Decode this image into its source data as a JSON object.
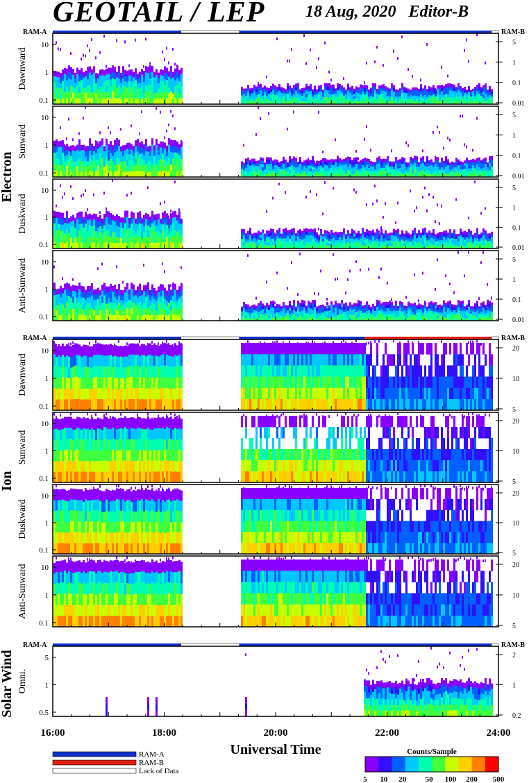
{
  "chart_data": {
    "type": "heatmap",
    "title": "GEOTAIL / LEP",
    "date": "18 Aug, 2020",
    "editor": "Editor-B",
    "xlabel": "Universal Time",
    "x_ticks": [
      "16:00",
      "18:00",
      "20:00",
      "22:00",
      "24:00"
    ],
    "x_range_hours": [
      16,
      24
    ],
    "data_gaps_hours": [
      [
        18.3,
        19.35
      ]
    ],
    "ram_labels": {
      "left": "RAM-A",
      "right": "RAM-B"
    },
    "groups": [
      {
        "name": "Electron",
        "panels": [
          {
            "label": "Dawnward",
            "left_ticks": [
              "10",
              "1",
              "0.1"
            ],
            "right_ticks": [
              "5",
              "1",
              "0.1",
              "0.01"
            ]
          },
          {
            "label": "Sunward",
            "left_ticks": [
              "10",
              "1",
              "0.1"
            ],
            "right_ticks": [
              "5",
              "1",
              "0.1",
              "0.01"
            ]
          },
          {
            "label": "Duskward",
            "left_ticks": [
              "10",
              "1",
              "0.1"
            ],
            "right_ticks": [
              "5",
              "1",
              "0.1",
              "0.01"
            ]
          },
          {
            "label": "Anti-Sunward",
            "left_ticks": [
              "10",
              "1",
              "0.1"
            ],
            "right_ticks": [
              "5",
              "1",
              "0.1",
              "0.01"
            ]
          }
        ]
      },
      {
        "name": "Ion",
        "panels": [
          {
            "label": "Dawnward",
            "left_ticks": [
              "10",
              "1",
              "0.1"
            ],
            "right_ticks": [
              "20",
              "10",
              "5"
            ]
          },
          {
            "label": "Sunward",
            "left_ticks": [
              "10",
              "1",
              "0.1"
            ],
            "right_ticks": [
              "20",
              "10",
              "5"
            ]
          },
          {
            "label": "Duskward",
            "left_ticks": [
              "10",
              "1",
              "0.1"
            ],
            "right_ticks": [
              "20",
              "10",
              "5"
            ]
          },
          {
            "label": "Anti-Sunward",
            "left_ticks": [
              "10",
              "1",
              "0.1"
            ],
            "right_ticks": [
              "20",
              "10",
              "5"
            ]
          }
        ]
      },
      {
        "name": "Solar Wind",
        "panels": [
          {
            "label": "Omni.",
            "left_ticks": [
              "5",
              "1",
              "0.5"
            ],
            "right_ticks": [
              "2",
              "1",
              "0.2"
            ]
          }
        ]
      }
    ],
    "legend": {
      "items": [
        {
          "label": "RAM-A",
          "color": "#1030c8"
        },
        {
          "label": "RAM-B",
          "color": "#e02010"
        },
        {
          "label": "Lack of Data",
          "color": "#ffffff"
        }
      ]
    },
    "colorbar": {
      "title": "Counts/Sample",
      "ticks": [
        "5",
        "10",
        "20",
        "50",
        "100",
        "200",
        "500"
      ],
      "colors": [
        "#8a00ff",
        "#1a1aff",
        "#00c8ff",
        "#00ff80",
        "#c8ff00",
        "#ffb000",
        "#ff0000"
      ]
    }
  }
}
